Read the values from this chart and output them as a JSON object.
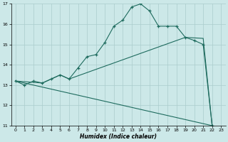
{
  "xlabel": "Humidex (Indice chaleur)",
  "xlim": [
    -0.5,
    23.5
  ],
  "ylim": [
    11,
    17
  ],
  "yticks": [
    11,
    12,
    13,
    14,
    15,
    16,
    17
  ],
  "xticks": [
    0,
    1,
    2,
    3,
    4,
    5,
    6,
    7,
    8,
    9,
    10,
    11,
    12,
    13,
    14,
    15,
    16,
    17,
    18,
    19,
    20,
    21,
    22,
    23
  ],
  "bg_color": "#cce8e8",
  "grid_color": "#aacccc",
  "line_color": "#1e6b5e",
  "line1_x": [
    0,
    1,
    2,
    3,
    4,
    5,
    6,
    7,
    8,
    9,
    10,
    11,
    12,
    13,
    14,
    15,
    16,
    17,
    18,
    19,
    20,
    21,
    22
  ],
  "line1_y": [
    13.2,
    13.0,
    13.2,
    13.1,
    13.3,
    13.5,
    13.3,
    13.85,
    14.4,
    14.5,
    15.1,
    15.9,
    16.2,
    16.85,
    17.0,
    16.65,
    15.9,
    15.9,
    15.9,
    15.35,
    15.2,
    15.0,
    11.0
  ],
  "line2_x": [
    0,
    3,
    4,
    5,
    6,
    19,
    21,
    22
  ],
  "line2_y": [
    13.2,
    13.1,
    13.3,
    13.5,
    13.3,
    15.35,
    15.3,
    11.0
  ],
  "line3_x": [
    0,
    22
  ],
  "line3_y": [
    13.2,
    11.0
  ]
}
